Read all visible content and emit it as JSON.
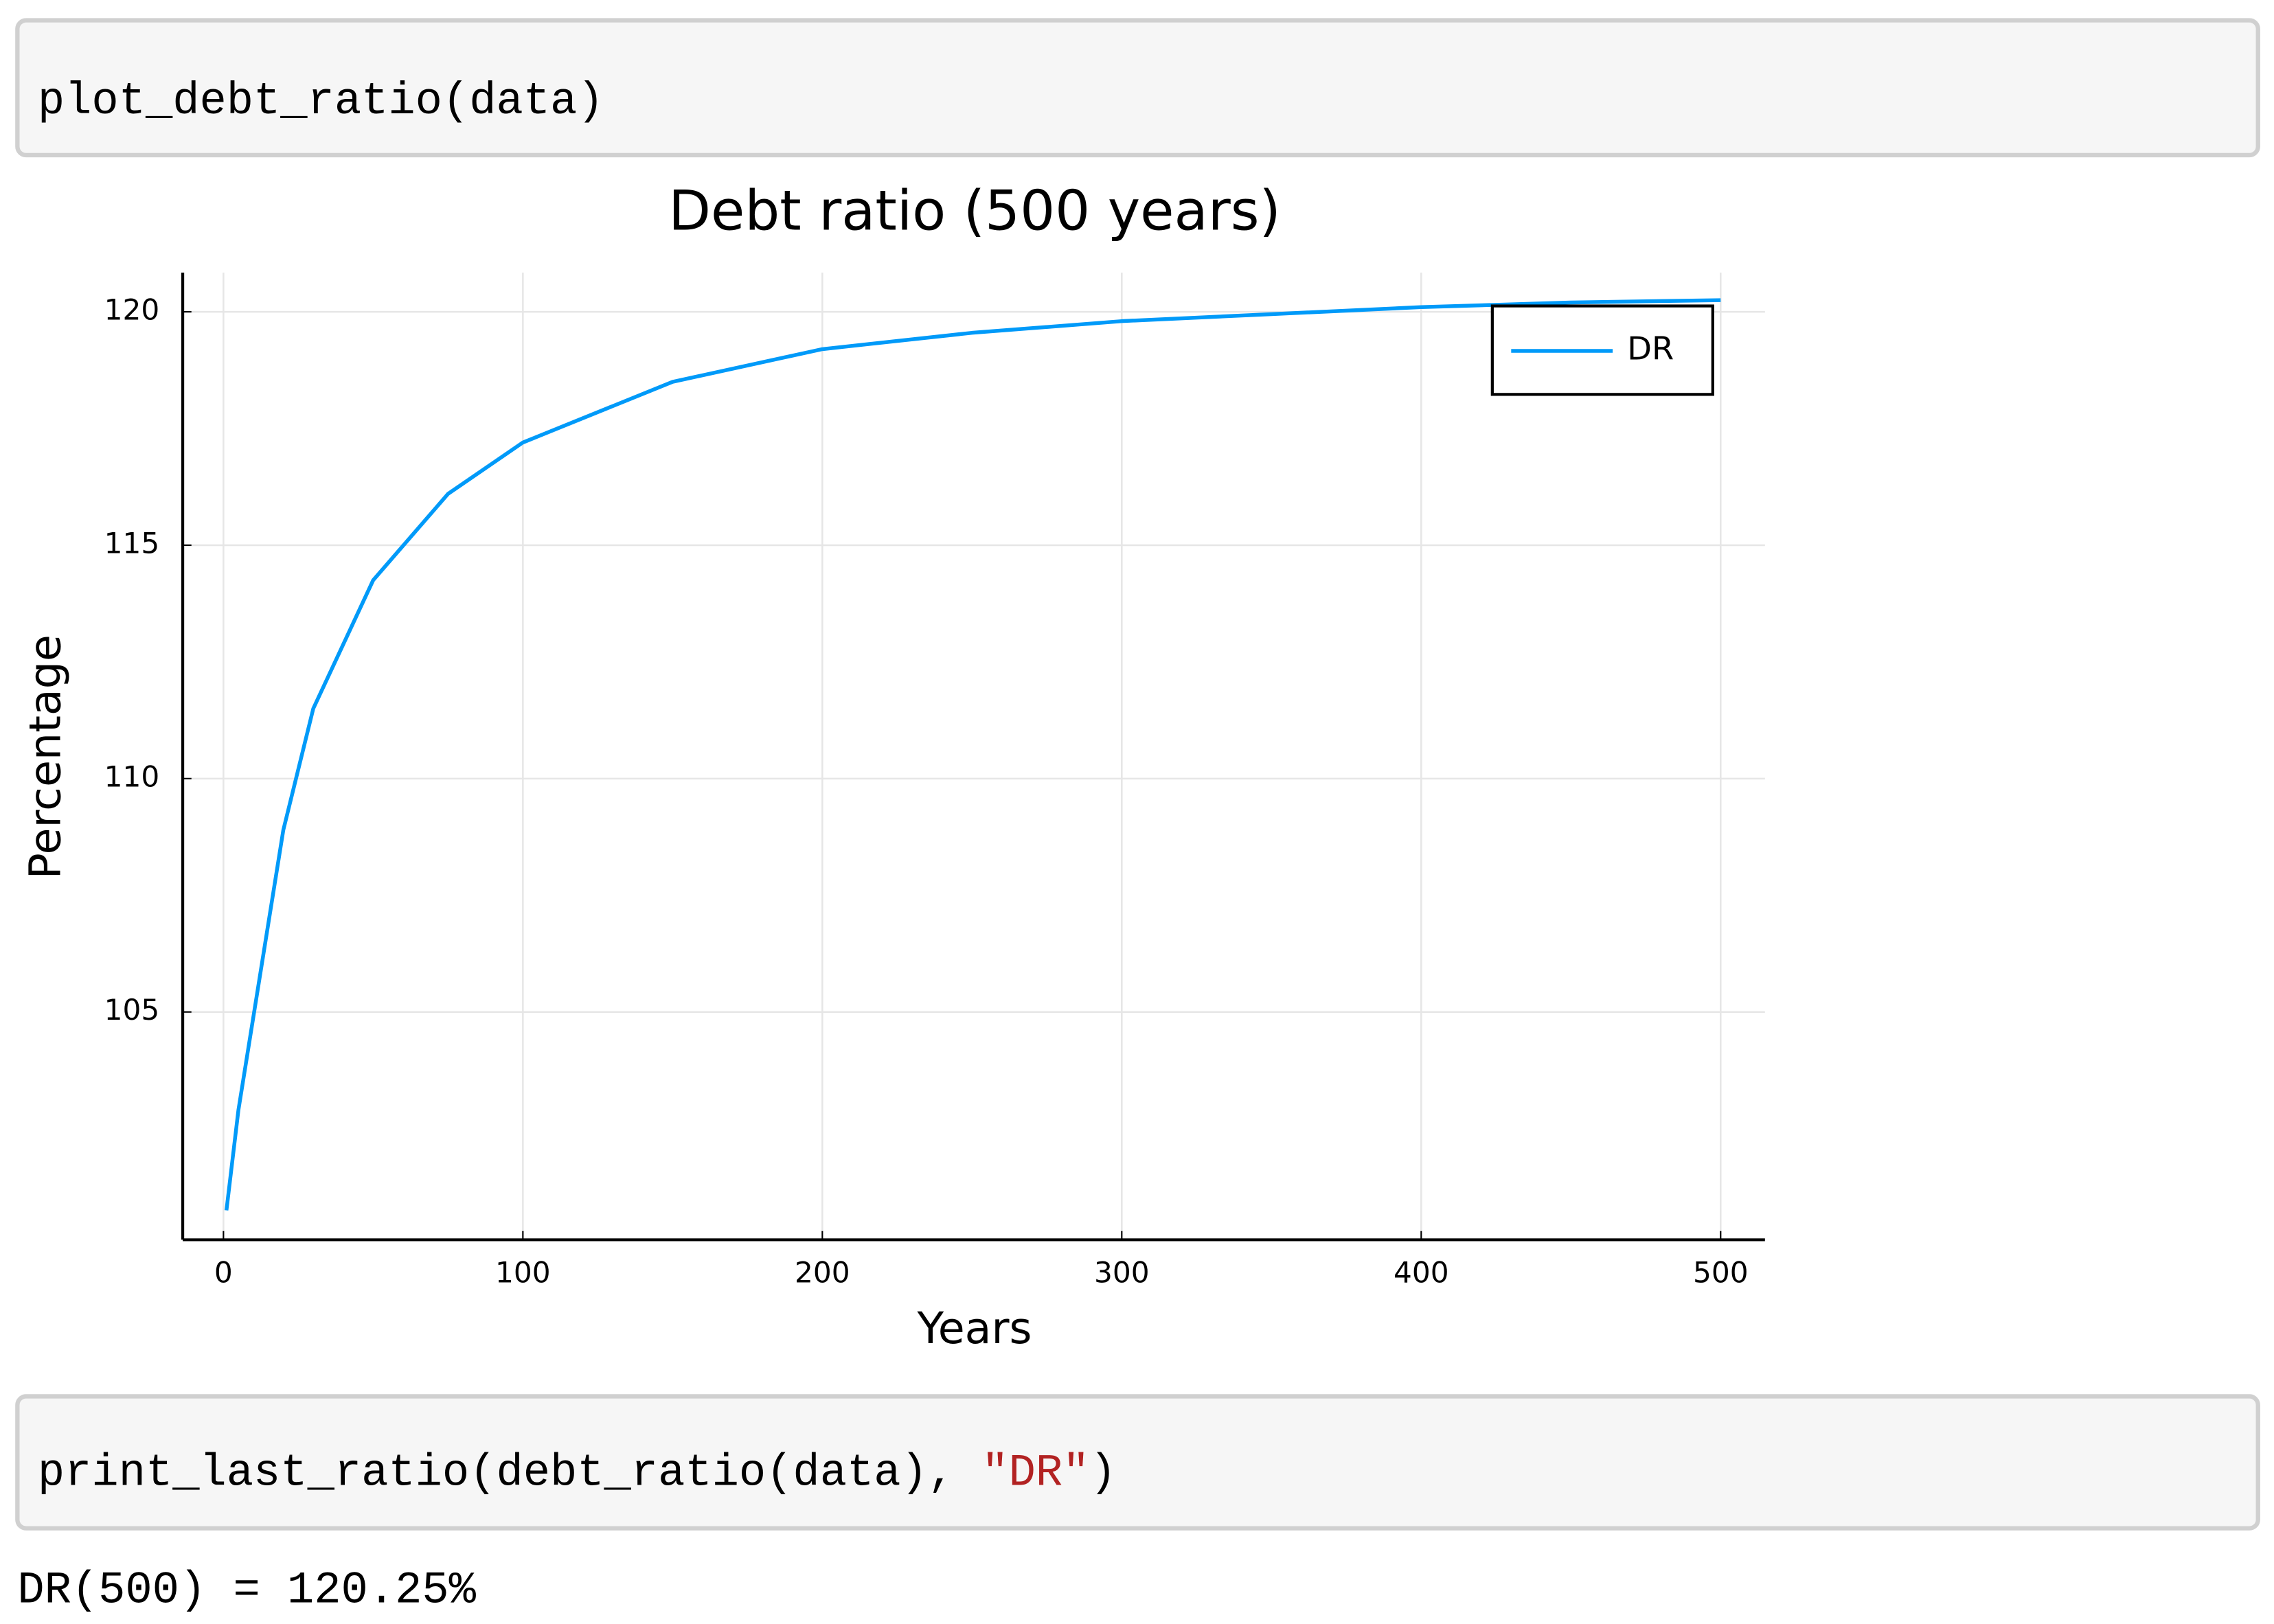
{
  "cells": [
    {
      "code": [
        "plot_debt_ratio(data)"
      ]
    },
    {
      "code": [
        "print_last_ratio(debt_ratio(data), ",
        "\"DR\"",
        ")"
      ],
      "output": "DR(500) = 120.25%"
    }
  ],
  "chart_data": {
    "type": "line",
    "title": "Debt ratio (500 years)",
    "x_label": "Years",
    "y_label": "Percentage",
    "x": [
      1,
      5,
      10,
      20,
      30,
      50,
      75,
      100,
      150,
      200,
      250,
      300,
      350,
      400,
      450,
      500
    ],
    "series": [
      {
        "name": "DR",
        "color": "#009af9",
        "values": [
          100.75,
          102.9,
          104.9,
          108.9,
          111.5,
          114.25,
          116.1,
          117.2,
          118.5,
          119.2,
          119.55,
          119.8,
          119.95,
          120.1,
          120.2,
          120.25
        ]
      }
    ],
    "xlim": [
      -13.6,
      514.8
    ],
    "ylim": [
      100.12,
      120.84
    ],
    "xticks": [
      0,
      100,
      200,
      300,
      400,
      500
    ],
    "yticks": [
      105,
      110,
      115,
      120
    ],
    "grid": true,
    "legend": "upper right"
  }
}
